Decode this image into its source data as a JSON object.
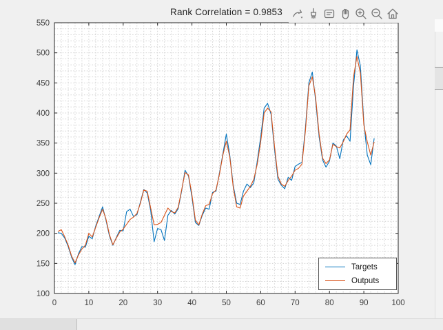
{
  "window": {
    "background": "#f0f0f0",
    "type": "matlab-figure"
  },
  "colors": {
    "axes_background": "#ffffff",
    "axis_line": "#262626",
    "grid_line": "#d2d2d2",
    "tick_label": "#3f3f3f",
    "title_text": "#262626",
    "toolbar_icon": "#757575",
    "targets_line": "#0072BD",
    "outputs_line": "#D95319"
  },
  "toolbar": {
    "icons": [
      {
        "name": "export"
      },
      {
        "name": "brush-data"
      },
      {
        "name": "data-tips"
      },
      {
        "name": "pan"
      },
      {
        "name": "zoom-in"
      },
      {
        "name": "zoom-out"
      },
      {
        "name": "restore-view-home"
      }
    ]
  },
  "chart_data": {
    "type": "line",
    "title": "Rank Correlation = 0.9853",
    "xlabel": "",
    "ylabel": "",
    "xlim": [
      0,
      100
    ],
    "ylim": [
      100,
      550
    ],
    "xticks": [
      0,
      10,
      20,
      30,
      40,
      50,
      60,
      70,
      80,
      90,
      100
    ],
    "yticks": [
      100,
      150,
      200,
      250,
      300,
      350,
      400,
      450,
      500,
      550
    ],
    "grid": "minor-dotted",
    "minor_x_step": 2,
    "minor_y_step": 10,
    "legend_position": "southeast",
    "x_start": 1,
    "x_step": 1,
    "series": [
      {
        "name": "Targets",
        "color": "#0072BD",
        "values": [
          201,
          200,
          192,
          178,
          160,
          148,
          166,
          178,
          177,
          195,
          191,
          212,
          228,
          244,
          222,
          196,
          180,
          193,
          205,
          204,
          236,
          240,
          228,
          231,
          252,
          273,
          267,
          238,
          186,
          208,
          206,
          188,
          230,
          238,
          232,
          241,
          270,
          305,
          295,
          260,
          218,
          213,
          230,
          242,
          240,
          268,
          270,
          300,
          332,
          365,
          330,
          280,
          250,
          248,
          270,
          282,
          276,
          284,
          320,
          360,
          408,
          416,
          398,
          340,
          290,
          280,
          274,
          293,
          288,
          311,
          315,
          318,
          375,
          450,
          468,
          420,
          360,
          322,
          310,
          320,
          350,
          345,
          324,
          355,
          362,
          353,
          444,
          505,
          478,
          385,
          330,
          314,
          358
        ]
      },
      {
        "name": "Outputs",
        "color": "#D95319",
        "values": [
          203,
          206,
          194,
          180,
          162,
          151,
          164,
          174,
          180,
          200,
          194,
          210,
          226,
          240,
          224,
          198,
          181,
          192,
          202,
          207,
          215,
          223,
          227,
          233,
          250,
          272,
          270,
          242,
          214,
          215,
          218,
          230,
          242,
          236,
          234,
          243,
          272,
          301,
          297,
          264,
          222,
          214,
          232,
          246,
          248,
          266,
          272,
          298,
          330,
          353,
          327,
          277,
          244,
          242,
          262,
          270,
          278,
          290,
          315,
          352,
          400,
          408,
          402,
          345,
          295,
          282,
          278,
          288,
          295,
          305,
          308,
          315,
          370,
          445,
          460,
          425,
          365,
          325,
          316,
          322,
          348,
          344,
          342,
          352,
          365,
          372,
          460,
          494,
          466,
          380,
          352,
          330,
          352
        ]
      }
    ]
  },
  "legend": {
    "entries": [
      {
        "label": "Targets"
      },
      {
        "label": "Outputs"
      }
    ]
  }
}
